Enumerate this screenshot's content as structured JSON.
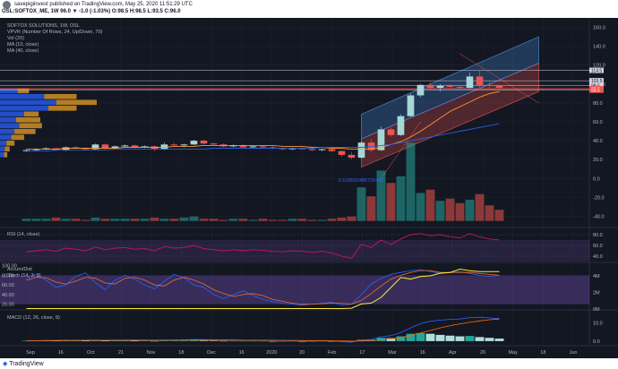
{
  "header": {
    "publisher_line": "savepigiinvest published on TradingView.com, May 25, 2020 11:51:29 UTC",
    "symbol_line": "OSL:SOFTOX_ME, 1W 96.0 ▼ -1.0 (-1.03%) O:98.5 H:98.5 L:93.5 C:96.0"
  },
  "footer": {
    "brand": "TradingView"
  },
  "legend": {
    "main": [
      "SOFTOX SOLUTIONS, 1W, OSL",
      "VPVR (Number Of Rows, 24, Up/Down, 70)",
      "Vol (20)",
      "MA (10, close)",
      "MA (40, close)"
    ],
    "rsi": "RSI (14, close)",
    "stoch": [
      "Accum/Dist",
      "Stoch (14, 3, 3)"
    ],
    "macd": "MACD (12, 26, close, 9)",
    "fib_value": "0.618502485725446"
  },
  "price_badges": [
    "114.5",
    "103.5",
    "98.5",
    "95.0",
    "93.5"
  ],
  "colors": {
    "bg": "#131722",
    "up": "#a6d7d7",
    "down": "#ef5350",
    "ma10": "#f89a3a",
    "ma40": "#2b5fd9",
    "vol_up": "#26a69a",
    "vol_down": "#ef5350",
    "rsi": "#c2185b",
    "stoch_k": "#2962ff",
    "stoch_d": "#ef6c35",
    "ad": "#ffeb3b",
    "macd": "#2962ff",
    "signal": "#ff6d00",
    "band": "#7e57c2"
  },
  "chart_data": [
    {
      "type": "candlestick",
      "name": "price",
      "x_labels": [
        "Sep",
        "16",
        "Oct",
        "21",
        "Nov",
        "18",
        "Dec",
        "16",
        "2020",
        "20",
        "Feb",
        "17",
        "Mar",
        "16",
        "Apr",
        "20",
        "May",
        "18",
        "Jun"
      ],
      "y_ticks": [
        -40.0,
        -20.0,
        0.0,
        20.0,
        40.0,
        60.0,
        80.0,
        100.0,
        120.0,
        140.0,
        160.0
      ],
      "ylim": [
        -50,
        170
      ],
      "candles": [
        [
          29,
          31,
          28,
          30
        ],
        [
          30,
          32,
          29,
          31
        ],
        [
          31,
          33,
          30,
          32
        ],
        [
          32,
          32,
          29,
          30
        ],
        [
          30,
          34,
          29,
          33
        ],
        [
          33,
          34,
          31,
          32
        ],
        [
          32,
          33,
          30,
          31
        ],
        [
          31,
          37,
          30,
          36
        ],
        [
          36,
          37,
          31,
          32
        ],
        [
          32,
          35,
          31,
          34
        ],
        [
          34,
          36,
          33,
          35
        ],
        [
          35,
          36,
          32,
          33
        ],
        [
          33,
          35,
          32,
          34
        ],
        [
          34,
          35,
          29,
          31
        ],
        [
          31,
          38,
          30,
          36
        ],
        [
          36,
          38,
          34,
          35
        ],
        [
          35,
          37,
          33,
          36
        ],
        [
          36,
          41,
          35,
          40
        ],
        [
          40,
          41,
          36,
          37
        ],
        [
          37,
          38,
          35,
          36
        ],
        [
          36,
          37,
          33,
          34
        ],
        [
          34,
          36,
          33,
          35
        ],
        [
          35,
          36,
          32,
          33
        ],
        [
          33,
          35,
          32,
          34
        ],
        [
          34,
          35,
          32,
          33
        ],
        [
          33,
          34,
          31,
          32
        ],
        [
          32,
          33,
          30,
          31
        ],
        [
          31,
          33,
          30,
          32
        ],
        [
          32,
          33,
          31,
          31
        ],
        [
          31,
          32,
          29,
          30
        ],
        [
          30,
          32,
          29,
          31
        ],
        [
          31,
          32,
          28,
          29
        ],
        [
          29,
          30,
          23,
          25
        ],
        [
          25,
          28,
          20,
          22
        ],
        [
          22,
          40,
          21,
          38
        ],
        [
          38,
          42,
          28,
          30
        ],
        [
          30,
          55,
          29,
          52
        ],
        [
          52,
          54,
          44,
          46
        ],
        [
          46,
          68,
          45,
          66
        ],
        [
          66,
          90,
          65,
          88
        ],
        [
          88,
          100,
          86,
          99
        ],
        [
          99,
          102,
          94,
          96
        ],
        [
          96,
          100,
          92,
          98
        ],
        [
          98,
          100,
          95,
          97
        ],
        [
          97,
          99,
          95,
          96
        ],
        [
          96,
          112,
          95,
          108
        ],
        [
          108,
          115,
          96,
          99
        ],
        [
          99,
          103,
          96,
          98
        ],
        [
          98,
          99,
          93,
          96
        ]
      ],
      "ma10": [
        31,
        31,
        31,
        31,
        32,
        32,
        32,
        32,
        32,
        32,
        33,
        33,
        33,
        33,
        33,
        34,
        34,
        34,
        35,
        35,
        35,
        35,
        35,
        35,
        35,
        35,
        34,
        34,
        34,
        33,
        33,
        32,
        32,
        31,
        31,
        31,
        33,
        36,
        39,
        44,
        50,
        57,
        64,
        71,
        76,
        81,
        86,
        90,
        92
      ],
      "ma40": [
        29,
        29,
        29,
        30,
        30,
        30,
        30,
        30,
        30,
        31,
        31,
        31,
        31,
        31,
        31,
        31,
        31,
        31,
        31,
        32,
        32,
        32,
        32,
        32,
        32,
        32,
        32,
        32,
        32,
        32,
        33,
        33,
        33,
        33,
        33,
        34,
        35,
        36,
        38,
        40,
        42,
        44,
        46,
        48,
        50,
        52,
        54,
        56,
        58
      ],
      "volume": [
        2,
        2,
        2,
        3,
        2,
        2,
        1,
        3,
        2,
        2,
        2,
        2,
        2,
        3,
        2,
        2,
        3,
        4,
        2,
        2,
        1,
        2,
        2,
        1,
        2,
        1,
        1,
        2,
        2,
        1,
        1,
        2,
        3,
        4,
        30,
        22,
        45,
        34,
        40,
        70,
        25,
        28,
        18,
        20,
        16,
        19,
        24,
        14,
        10
      ],
      "vol_max": 80,
      "vpvr": [
        {
          "up": 22,
          "down": 14
        },
        {
          "up": 55,
          "down": 40
        },
        {
          "up": 70,
          "down": 50
        },
        {
          "up": 60,
          "down": 35
        },
        {
          "up": 30,
          "down": 18
        },
        {
          "up": 20,
          "down": 30
        },
        {
          "up": 24,
          "down": 28
        },
        {
          "up": 18,
          "down": 26
        },
        {
          "up": 14,
          "down": 16
        },
        {
          "up": 8,
          "down": 10
        },
        {
          "up": 6,
          "down": 6
        },
        {
          "up": 5,
          "down": 4
        }
      ],
      "fib_channel": {
        "start_week": 34,
        "end_week": 52,
        "low_start": 12,
        "low_end": 92,
        "mid_start": 42,
        "mid_end": 122,
        "high_start": 68,
        "high_end": 150
      },
      "hlines": [
        114.5,
        103.5,
        98.5,
        95.0,
        93.5
      ]
    },
    {
      "type": "line",
      "name": "rsi",
      "y_ticks": [
        80.0,
        60.0,
        40.0
      ],
      "ylim": [
        30,
        90
      ],
      "values": [
        48,
        50,
        52,
        49,
        55,
        53,
        50,
        57,
        52,
        55,
        56,
        53,
        54,
        50,
        58,
        55,
        56,
        60,
        54,
        52,
        50,
        52,
        50,
        52,
        51,
        49,
        48,
        50,
        49,
        47,
        49,
        46,
        40,
        36,
        62,
        56,
        70,
        62,
        72,
        80,
        82,
        78,
        80,
        76,
        74,
        82,
        76,
        72,
        70
      ]
    },
    {
      "type": "line",
      "name": "stoch",
      "y_ticks": [
        100.0,
        80.0,
        60.0,
        40.0,
        20.0
      ],
      "ylim": [
        10,
        105
      ],
      "k": [
        75,
        82,
        70,
        55,
        60,
        78,
        85,
        65,
        50,
        70,
        80,
        72,
        60,
        52,
        68,
        82,
        75,
        60,
        55,
        40,
        32,
        40,
        48,
        38,
        30,
        25,
        22,
        20,
        18,
        20,
        22,
        24,
        18,
        20,
        40,
        62,
        74,
        82,
        86,
        90,
        92,
        88,
        84,
        86,
        88,
        84,
        80,
        78,
        80
      ],
      "d": [
        70,
        76,
        75,
        66,
        62,
        68,
        76,
        74,
        64,
        62,
        74,
        76,
        70,
        60,
        58,
        70,
        76,
        70,
        62,
        50,
        42,
        36,
        40,
        42,
        38,
        30,
        26,
        22,
        20,
        20,
        21,
        22,
        22,
        20,
        28,
        42,
        58,
        72,
        80,
        86,
        90,
        90,
        86,
        86,
        86,
        86,
        84,
        82,
        80
      ],
      "ad_right_ticks": [
        "4M",
        "2M",
        "0M"
      ],
      "ad": [
        0.05,
        0.05,
        0.05,
        0.05,
        0.05,
        0.05,
        0.05,
        0.05,
        0.05,
        0.05,
        0.05,
        0.05,
        0.05,
        0.05,
        0.05,
        0.05,
        0.05,
        0.05,
        0.05,
        0.05,
        0.05,
        0.05,
        0.05,
        0.05,
        0.05,
        0.05,
        0.05,
        0.05,
        0.05,
        0.05,
        0.05,
        0.05,
        0.05,
        0.1,
        0.6,
        0.7,
        1.4,
        2.6,
        3.8,
        3.6,
        3.9,
        4.0,
        4.3,
        4.4,
        4.8,
        4.6,
        4.5,
        4.5,
        4.5
      ],
      "ad_max": 5.5
    },
    {
      "type": "bar",
      "name": "macd",
      "y_ticks": [
        10.0,
        0.0
      ],
      "ylim": [
        -2,
        16
      ],
      "histogram": [
        0.2,
        0.2,
        0.3,
        0.2,
        0.3,
        0.3,
        0.2,
        0.3,
        0.2,
        0.3,
        0.3,
        0.2,
        0.2,
        0.1,
        0.3,
        0.3,
        0.3,
        0.5,
        0.3,
        0.2,
        0.1,
        0.1,
        0.1,
        0.1,
        0.1,
        0.0,
        0.0,
        0.1,
        0.0,
        0.0,
        0.1,
        0.0,
        -0.3,
        -0.4,
        0.8,
        0.8,
        1.8,
        1.6,
        2.6,
        4.0,
        4.4,
        4.0,
        3.4,
        3.0,
        2.6,
        2.8,
        2.2,
        1.8,
        1.4
      ],
      "macd": [
        0.3,
        0.3,
        0.4,
        0.4,
        0.5,
        0.5,
        0.5,
        0.6,
        0.5,
        0.6,
        0.6,
        0.6,
        0.6,
        0.5,
        0.6,
        0.6,
        0.7,
        0.9,
        0.8,
        0.7,
        0.6,
        0.6,
        0.5,
        0.5,
        0.5,
        0.4,
        0.3,
        0.3,
        0.2,
        0.2,
        0.2,
        0.1,
        -0.3,
        -0.6,
        0.6,
        0.9,
        2.4,
        3.0,
        4.6,
        7.2,
        9.6,
        10.8,
        11.4,
        11.8,
        12.0,
        12.8,
        13.0,
        12.6,
        12.2
      ],
      "signal": [
        0.2,
        0.2,
        0.3,
        0.3,
        0.3,
        0.4,
        0.4,
        0.4,
        0.4,
        0.4,
        0.4,
        0.4,
        0.5,
        0.5,
        0.5,
        0.5,
        0.5,
        0.6,
        0.6,
        0.6,
        0.6,
        0.6,
        0.5,
        0.5,
        0.5,
        0.5,
        0.4,
        0.4,
        0.3,
        0.3,
        0.3,
        0.2,
        0.1,
        0.0,
        0.1,
        0.3,
        0.7,
        1.2,
        1.9,
        3.0,
        4.4,
        5.8,
        7.2,
        8.4,
        9.4,
        10.2,
        11.0,
        11.6,
        12.0
      ]
    }
  ]
}
